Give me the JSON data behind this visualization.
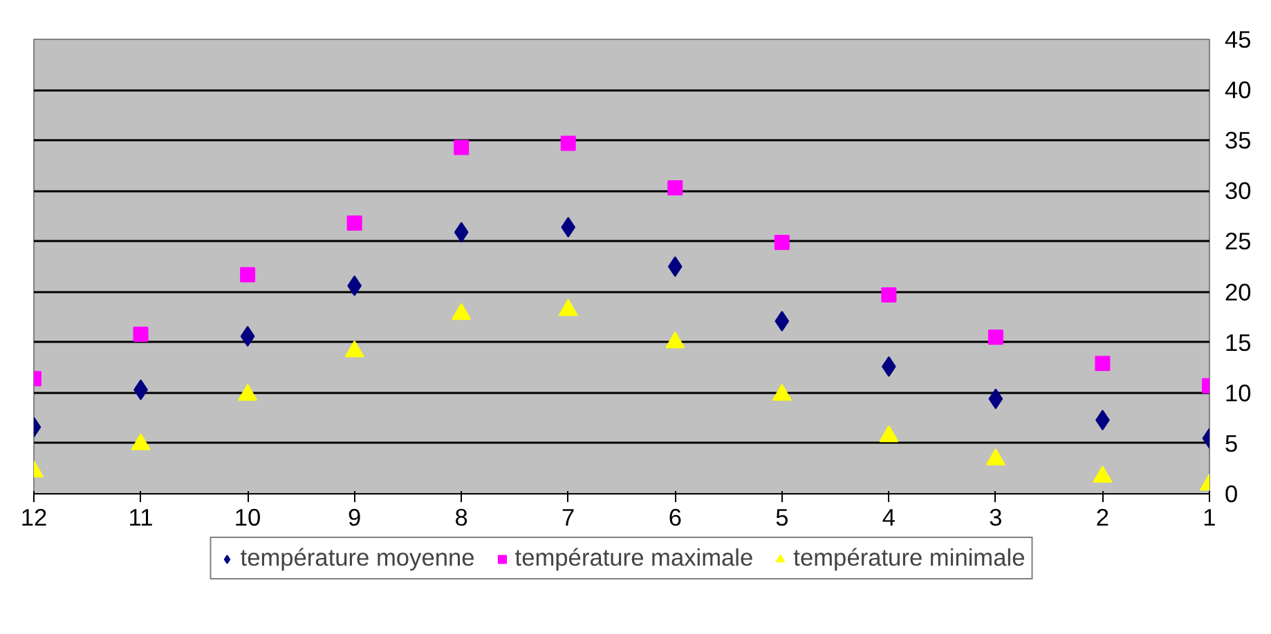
{
  "chart_data": {
    "type": "scatter",
    "x": [
      12,
      11,
      10,
      9,
      8,
      7,
      6,
      5,
      4,
      3,
      2,
      1
    ],
    "series": [
      {
        "name": "température moyenne",
        "color": "#000080",
        "marker": "diamond",
        "values": [
          6.6,
          10.3,
          15.6,
          20.6,
          25.9,
          26.4,
          22.5,
          17.1,
          12.6,
          9.4,
          7.3,
          5.5
        ]
      },
      {
        "name": "température maximale",
        "color": "#ff00ff",
        "marker": "square",
        "values": [
          11.4,
          15.8,
          21.7,
          26.8,
          34.3,
          34.7,
          30.3,
          24.9,
          19.7,
          15.5,
          12.9,
          10.7
        ]
      },
      {
        "name": "température minimale",
        "color": "#ffff00",
        "marker": "triangle",
        "values": [
          2.2,
          4.9,
          9.8,
          14.1,
          17.8,
          18.2,
          15.0,
          9.8,
          5.7,
          3.4,
          1.7,
          0.9
        ]
      }
    ],
    "xlim": [
      12,
      1
    ],
    "xticks": [
      12,
      11,
      10,
      9,
      8,
      7,
      6,
      5,
      4,
      3,
      2,
      1
    ],
    "ylim": [
      0,
      45
    ],
    "yticks": [
      0,
      5,
      10,
      15,
      20,
      25,
      30,
      35,
      40,
      45
    ],
    "grid": "y",
    "legend": "bottom"
  }
}
